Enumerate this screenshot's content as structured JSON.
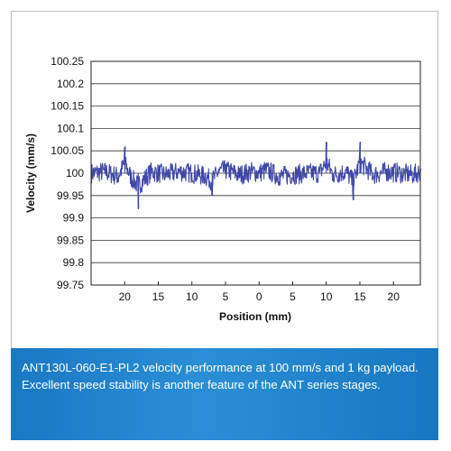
{
  "caption": "ANT130L-060-E1-PL2 velocity performance at 100 mm/s and 1 kg payload. Excellent speed stability is another feature of the ANT series stages.",
  "chart_data": {
    "type": "line",
    "title": "",
    "xlabel": "Position (mm)",
    "ylabel": "Velocity (mm/s)",
    "xlim": [
      -25,
      24
    ],
    "ylim": [
      99.75,
      100.25
    ],
    "x_ticks": [
      20,
      15,
      10,
      5,
      0,
      5,
      10,
      15,
      20
    ],
    "y_ticks": [
      "100.25",
      "100.2",
      "100.15",
      "100.1",
      "100.05",
      "100",
      "99.95",
      "99.9",
      "99.85",
      "99.8",
      "99.75"
    ],
    "grid": true,
    "legend": "none",
    "series": [
      {
        "color": "#3f48a6",
        "x": [
          -25,
          -23,
          -21,
          -20,
          -19,
          -18,
          -16,
          -14,
          -12,
          -10,
          -8,
          -7,
          -6,
          -5,
          -3,
          -1,
          0,
          1,
          3,
          5,
          7,
          9,
          10,
          11,
          13,
          14,
          15,
          17,
          19,
          21,
          23,
          24
        ],
        "y": [
          100.0,
          100.01,
          99.98,
          100.06,
          99.97,
          99.92,
          100.01,
          99.99,
          100.01,
          100.0,
          99.98,
          99.95,
          100.01,
          100.02,
          99.99,
          100.01,
          100.0,
          100.02,
          99.98,
          99.99,
          100.0,
          100.0,
          100.07,
          99.99,
          100.01,
          99.94,
          100.07,
          99.99,
          100.01,
          100.0,
          99.99,
          100.01
        ]
      }
    ]
  }
}
